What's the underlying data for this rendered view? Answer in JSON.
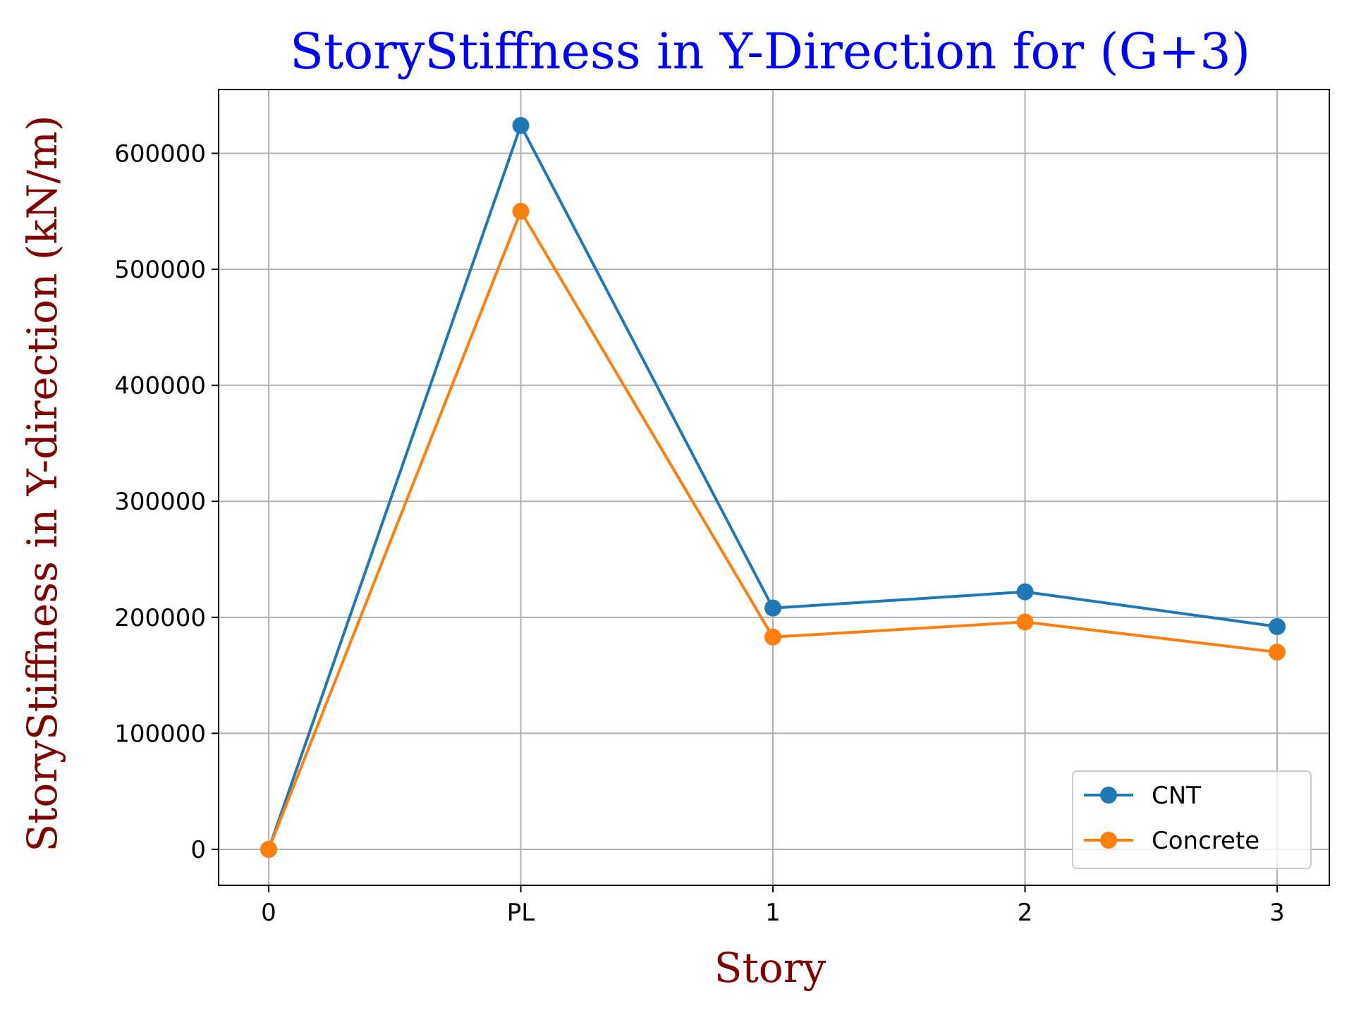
{
  "chart_data": {
    "type": "line",
    "title": "StoryStiffness in Y-Direction for (G+3)",
    "xlabel": "Story",
    "ylabel": "StoryStiffness in Y-direction (kN/m)",
    "categories": [
      "0",
      "PL",
      "1",
      "2",
      "3"
    ],
    "y_ticks": [
      0,
      100000,
      200000,
      300000,
      400000,
      500000,
      600000
    ],
    "y_tick_labels": [
      "0",
      "100000",
      "200000",
      "300000",
      "400000",
      "500000",
      "600000"
    ],
    "ylim": [
      -31000,
      655000
    ],
    "grid": true,
    "legend_position": "lower-right",
    "series": [
      {
        "name": "CNT",
        "color": "#1f77b4",
        "values": [
          0,
          624000,
          208000,
          222000,
          192000
        ]
      },
      {
        "name": "Concrete",
        "color": "#ff7f0e",
        "values": [
          0,
          550000,
          183000,
          196000,
          170000
        ]
      }
    ],
    "colors": {
      "title": "#0000ff",
      "axis_labels": "#800000",
      "grid": "#b0b0b0"
    }
  }
}
